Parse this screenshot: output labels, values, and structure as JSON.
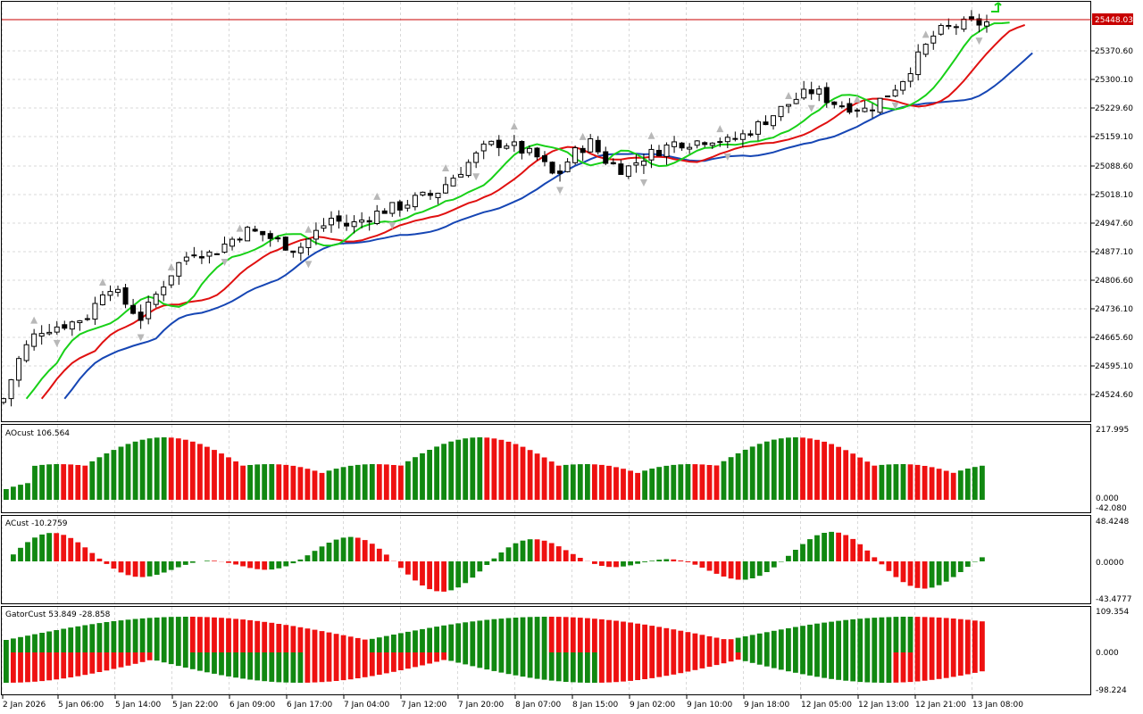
{
  "main": {
    "current_price_label": "25448.03",
    "price_labels": [
      "25370.60",
      "25300.10",
      "25229.60",
      "25159.10",
      "25088.60",
      "25018.10",
      "24947.60",
      "24877.10",
      "24806.60",
      "24736.10",
      "24665.60",
      "24595.10",
      "24524.60"
    ],
    "colors": {
      "bull": "#000000",
      "bear": "#000000",
      "jaw": "#1646b4",
      "teeth": "#e01010",
      "lips": "#18d018",
      "price_line": "#c80000",
      "fractal": "#9a9a9a",
      "grid": "#d0d0d0"
    }
  },
  "ao": {
    "title": "AOcust 106.564",
    "labels": [
      "217.995",
      "0.000",
      "-42.080"
    ]
  },
  "ac": {
    "title": "ACust -10.2759",
    "labels": [
      "48.4248",
      "0.0000",
      "-43.4777"
    ]
  },
  "gator": {
    "title": "GatorCust 53.849 -28.858",
    "labels": [
      "109.354",
      "0.000",
      "-98.224"
    ]
  },
  "time_axis": {
    "labels": [
      "2 Jan 2026",
      "5 Jan 06:00",
      "5 Jan 14:00",
      "5 Jan 22:00",
      "6 Jan 09:00",
      "6 Jan 17:00",
      "7 Jan 04:00",
      "7 Jan 12:00",
      "7 Jan 20:00",
      "8 Jan 07:00",
      "8 Jan 15:00",
      "9 Jan 02:00",
      "9 Jan 10:00",
      "9 Jan 18:00",
      "12 Jan 05:00",
      "12 Jan 13:00",
      "12 Jan 21:00",
      "13 Jan 08:00"
    ]
  },
  "colors": {
    "up": "#118811",
    "down": "#ee1111"
  },
  "chart_data": {
    "type": "candlestick",
    "close_approx": [
      24510,
      24620,
      24680,
      24690,
      24700,
      24720,
      24800,
      24750,
      24710,
      24780,
      24840,
      24880,
      24870,
      24900,
      24930,
      24920,
      24900,
      24880,
      24920,
      24960,
      24940,
      24960,
      24980,
      24990,
      25010,
      25020,
      25060,
      25100,
      25140,
      25150,
      25130,
      25110,
      25060,
      25120,
      25150,
      25100,
      25080,
      25110,
      25130,
      25150,
      25150,
      25160,
      25150,
      25170,
      25200,
      25230,
      25260,
      25280,
      25250,
      25240,
      25230,
      25260,
      25300,
      25360,
      25420,
      25440,
      25445,
      25448
    ]
  }
}
